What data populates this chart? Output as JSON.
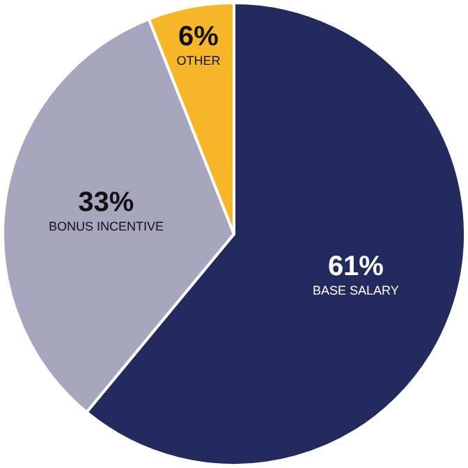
{
  "chart_data": {
    "type": "pie",
    "categories": [
      "BASE SALARY",
      "BONUS INCENTIVE",
      "OTHER"
    ],
    "values": [
      61,
      33,
      6
    ],
    "colors": [
      "#232a5e",
      "#a8a5bf",
      "#f6b627"
    ],
    "value_labels": [
      "61%",
      "33%",
      "6%"
    ]
  }
}
